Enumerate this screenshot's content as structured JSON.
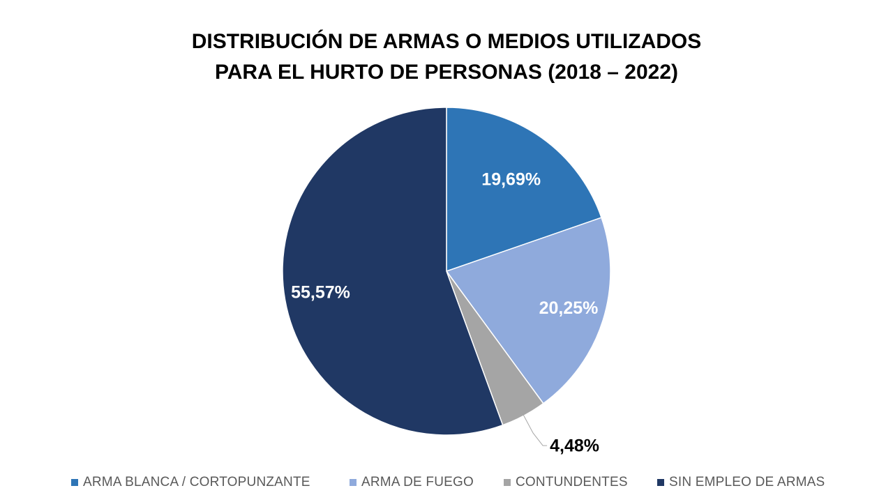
{
  "chart_data": {
    "type": "pie",
    "title_lines": [
      "DISTRIBUCIÓN DE ARMAS O MEDIOS UTILIZADOS",
      "PARA EL HURTO DE PERSONAS (2018 – 2022)"
    ],
    "categories": [
      "ARMA BLANCA / CORTOPUNZANTE",
      "ARMA DE FUEGO",
      "CONTUNDENTES",
      "SIN EMPLEO DE ARMAS"
    ],
    "values": [
      19.69,
      20.25,
      4.48,
      55.57
    ],
    "data_labels": [
      "19,69%",
      "20,25%",
      "4,48%",
      "55,57%"
    ],
    "colors": [
      "#2E75B6",
      "#8FAADC",
      "#A5A5A5",
      "#203864"
    ],
    "data_label_colors": [
      "#FFFFFF",
      "#FFFFFF",
      "#000000",
      "#FFFFFF"
    ],
    "start_angle": "12 o'clock",
    "direction": "clockwise",
    "legend_position": "bottom"
  }
}
